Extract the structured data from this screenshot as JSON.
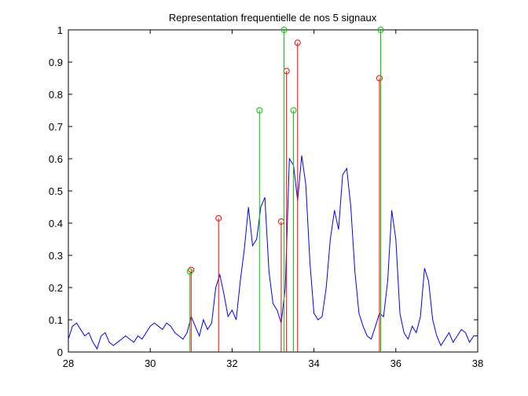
{
  "chart_data": {
    "type": "line",
    "title": "Representation frequentielle de nos 5 signaux",
    "xlabel": "",
    "ylabel": "",
    "xlim": [
      28,
      38
    ],
    "ylim": [
      0,
      1
    ],
    "grid": false,
    "x_ticks": [
      28,
      30,
      32,
      34,
      36,
      38
    ],
    "x_tick_labels": [
      "28",
      "30",
      "32",
      "34",
      "36",
      "38"
    ],
    "y_ticks": [
      0,
      0.1,
      0.2,
      0.3,
      0.4,
      0.5,
      0.6,
      0.7,
      0.8,
      0.9,
      1
    ],
    "y_tick_labels": [
      "0",
      "0.1",
      "0.2",
      "0.3",
      "0.4",
      "0.5",
      "0.6",
      "0.7",
      "0.8",
      "0.9",
      "1"
    ],
    "colors": {
      "spectrum": "#0000ff",
      "stems_red": "#ff0000",
      "stems_green": "#00cc00",
      "axes": "#000000"
    },
    "series": [
      {
        "style": "line",
        "color": "#0000ff",
        "x": [
          28.0,
          28.1,
          28.2,
          28.3,
          28.4,
          28.5,
          28.6,
          28.7,
          28.8,
          28.9,
          29.0,
          29.1,
          29.2,
          29.3,
          29.4,
          29.5,
          29.6,
          29.7,
          29.8,
          29.9,
          30.0,
          30.1,
          30.2,
          30.3,
          30.4,
          30.5,
          30.6,
          30.7,
          30.8,
          30.9,
          31.0,
          31.1,
          31.2,
          31.3,
          31.4,
          31.5,
          31.6,
          31.7,
          31.8,
          31.9,
          32.0,
          32.1,
          32.2,
          32.3,
          32.4,
          32.5,
          32.6,
          32.7,
          32.8,
          32.9,
          33.0,
          33.1,
          33.2,
          33.3,
          33.4,
          33.5,
          33.6,
          33.7,
          33.8,
          33.9,
          34.0,
          34.1,
          34.2,
          34.3,
          34.4,
          34.5,
          34.6,
          34.7,
          34.8,
          34.9,
          35.0,
          35.1,
          35.2,
          35.3,
          35.4,
          35.5,
          35.6,
          35.7,
          35.8,
          35.9,
          36.0,
          36.1,
          36.2,
          36.3,
          36.4,
          36.5,
          36.6,
          36.7,
          36.8,
          36.9,
          37.0,
          37.1,
          37.2,
          37.3,
          37.4,
          37.5,
          37.6,
          37.7,
          37.8,
          37.9,
          38.0
        ],
        "y": [
          0.04,
          0.08,
          0.09,
          0.07,
          0.05,
          0.06,
          0.03,
          0.01,
          0.05,
          0.06,
          0.03,
          0.02,
          0.03,
          0.04,
          0.05,
          0.04,
          0.03,
          0.05,
          0.04,
          0.06,
          0.08,
          0.09,
          0.08,
          0.07,
          0.09,
          0.08,
          0.06,
          0.05,
          0.04,
          0.06,
          0.11,
          0.08,
          0.05,
          0.1,
          0.07,
          0.09,
          0.2,
          0.24,
          0.18,
          0.11,
          0.13,
          0.1,
          0.22,
          0.32,
          0.45,
          0.33,
          0.35,
          0.45,
          0.48,
          0.25,
          0.15,
          0.13,
          0.09,
          0.2,
          0.6,
          0.58,
          0.47,
          0.61,
          0.52,
          0.28,
          0.12,
          0.1,
          0.11,
          0.2,
          0.35,
          0.44,
          0.38,
          0.55,
          0.57,
          0.45,
          0.25,
          0.12,
          0.08,
          0.05,
          0.04,
          0.08,
          0.12,
          0.11,
          0.22,
          0.44,
          0.35,
          0.12,
          0.06,
          0.04,
          0.08,
          0.06,
          0.11,
          0.26,
          0.22,
          0.1,
          0.05,
          0.02,
          0.04,
          0.06,
          0.03,
          0.05,
          0.07,
          0.06,
          0.03,
          0.05,
          0.05
        ]
      },
      {
        "style": "stem",
        "color": "#ff0000",
        "x": [
          31.0,
          31.67,
          33.2,
          33.33,
          33.6,
          35.6
        ],
        "y": [
          0.255,
          0.415,
          0.405,
          0.872,
          0.96,
          0.85
        ]
      },
      {
        "style": "stem",
        "color": "#00cc00",
        "x": [
          30.97,
          32.67,
          33.27,
          33.5,
          35.63
        ],
        "y": [
          0.25,
          0.75,
          1.0,
          0.75,
          1.0
        ]
      }
    ]
  }
}
